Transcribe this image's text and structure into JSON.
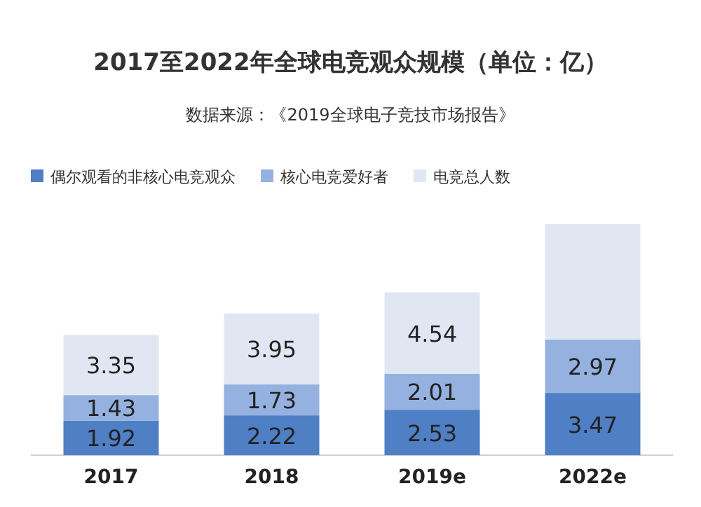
{
  "chart_data": {
    "type": "bar",
    "title": "2017至2022年全球电竞观众规模（单位：亿）",
    "subtitle": "数据来源：《2019全球电子竞技市场报告》",
    "categories": [
      "2017",
      "2018",
      "2019e",
      "2022e"
    ],
    "stacked": true,
    "legend": "top left",
    "series": [
      {
        "name": "偶尔观看的非核心电竞观众",
        "color": "#4f7fc4",
        "values": [
          1.92,
          2.22,
          2.53,
          3.47
        ],
        "value_labels": [
          "1.92",
          "2.22",
          "2.53",
          "3.47"
        ]
      },
      {
        "name": "核心电竞爱好者",
        "color": "#94b1e0",
        "values": [
          1.43,
          1.73,
          2.01,
          2.97
        ],
        "value_labels": [
          "1.43",
          "1.73",
          "2.01",
          "2.97"
        ]
      },
      {
        "name": "电竞总人数",
        "color": "#e1e7f2",
        "values": [
          3.35,
          3.95,
          4.54,
          6.44
        ],
        "value_labels": [
          "3.35",
          "3.95",
          "4.54",
          null
        ]
      }
    ]
  }
}
